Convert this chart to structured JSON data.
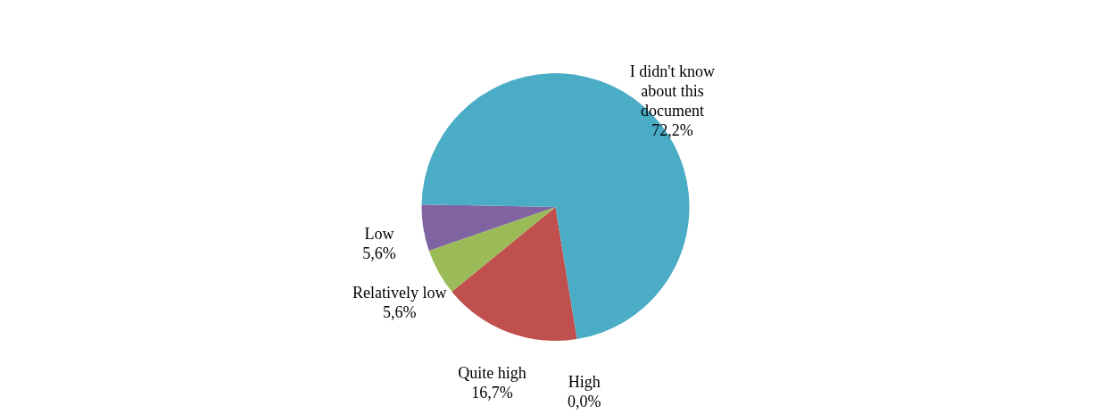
{
  "chart_data": {
    "type": "pie",
    "categories": [
      "High",
      "Quite high",
      "Relatively low",
      "Low",
      "I didn't know about this document"
    ],
    "values": [
      0.0,
      16.7,
      5.6,
      5.6,
      72.2
    ],
    "value_labels": [
      "0,0%",
      "16,7%",
      "5,6%",
      "5,6%",
      "72,2%"
    ],
    "colors": [
      "#4f81bd",
      "#c0504d",
      "#9bbb59",
      "#8064a2",
      "#4bacc6"
    ],
    "legend": false
  }
}
